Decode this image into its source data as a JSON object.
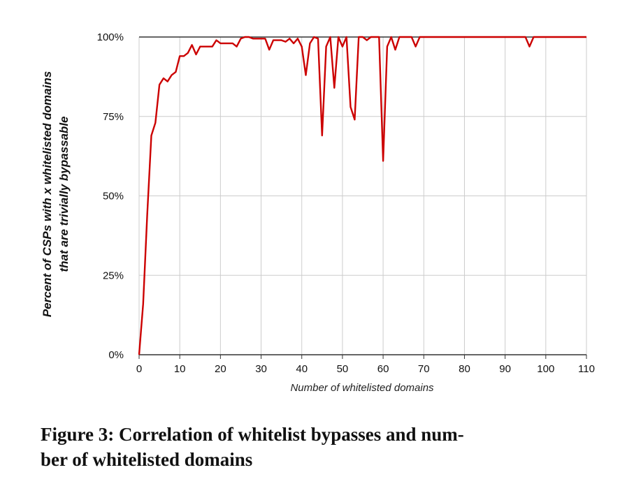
{
  "caption": {
    "line1": "Figure 3: Correlation of whitelist bypasses and num-",
    "line2": "ber of whitelisted domains"
  },
  "chart_data": {
    "type": "line",
    "title": "",
    "xlabel": "Number of whitelisted domains",
    "ylabel_line1": "Percent of CSPs with x whitelisted domains",
    "ylabel_line2": "that are trivially bypassable",
    "xlim": [
      0,
      110
    ],
    "ylim": [
      0,
      100
    ],
    "x_ticks": [
      0,
      10,
      20,
      30,
      40,
      50,
      60,
      70,
      80,
      90,
      100,
      110
    ],
    "x_tick_labels": [
      "0",
      "10",
      "20",
      "30",
      "40",
      "50",
      "60",
      "70",
      "80",
      "90",
      "100",
      "110"
    ],
    "y_ticks": [
      0,
      25,
      50,
      75,
      100
    ],
    "y_tick_labels": [
      "0%",
      "25%",
      "50%",
      "75%",
      "100%"
    ],
    "grid": true,
    "line_color": "#cc0000",
    "series": [
      {
        "x": [
          0,
          1,
          2,
          3,
          4,
          5,
          6,
          7,
          8,
          9,
          10,
          11,
          12,
          13,
          14,
          15,
          16,
          17,
          18,
          19,
          20,
          21,
          22,
          23,
          24,
          25,
          26,
          27,
          28,
          29,
          30,
          31,
          32,
          33,
          34,
          35,
          36,
          37,
          38,
          39,
          40,
          41,
          42,
          43,
          44,
          45,
          46,
          47,
          48,
          49,
          50,
          51,
          52,
          53,
          54,
          55,
          56,
          57,
          58,
          59,
          60,
          61,
          62,
          63,
          64,
          65,
          66,
          67,
          68,
          69,
          70,
          71,
          72,
          73,
          74,
          75,
          76,
          77,
          78,
          79,
          80,
          81,
          82,
          83,
          84,
          85,
          86,
          87,
          88,
          89,
          90,
          91,
          92,
          93,
          94,
          95,
          96,
          97,
          98,
          99,
          100,
          101,
          102,
          103,
          104,
          105,
          106,
          107,
          108,
          109,
          110
        ],
        "y": [
          0,
          16,
          44,
          69,
          73,
          85,
          87,
          86,
          88,
          89,
          94,
          94,
          95,
          97.5,
          94.5,
          97,
          97,
          97,
          97,
          99,
          98,
          98,
          98,
          98,
          97,
          99.5,
          100,
          100,
          99.5,
          99.5,
          99.5,
          99.5,
          96,
          99,
          99,
          99,
          98.5,
          99.5,
          98,
          99.5,
          97,
          88,
          98,
          100,
          99.5,
          69,
          97,
          100,
          84,
          100,
          97,
          100,
          78,
          74,
          100,
          100,
          99,
          100,
          100,
          100,
          61,
          97,
          100,
          96,
          100,
          100,
          100,
          100,
          97,
          100,
          100,
          100,
          100,
          100,
          100,
          100,
          100,
          100,
          100,
          100,
          100,
          100,
          100,
          100,
          100,
          100,
          100,
          100,
          100,
          100,
          100,
          100,
          100,
          100,
          100,
          100,
          97,
          100,
          100,
          100,
          100,
          100,
          100,
          100,
          100,
          100,
          100,
          100,
          100,
          100,
          100
        ]
      }
    ]
  }
}
